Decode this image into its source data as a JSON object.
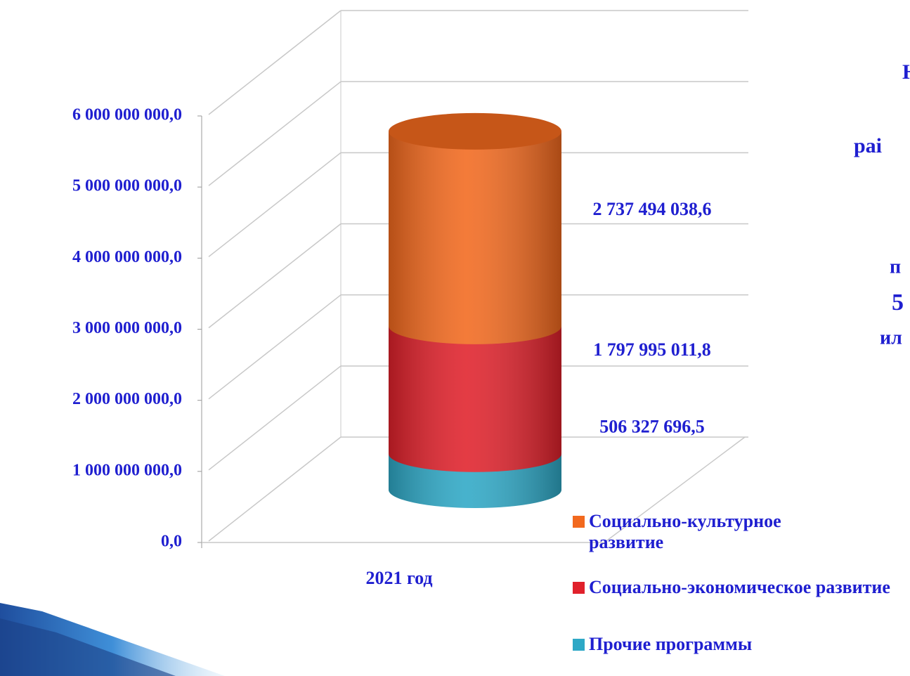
{
  "chart_data": {
    "type": "bar3d-stacked-cylinder",
    "categories": [
      "2021 год"
    ],
    "series": [
      {
        "name": "Прочие программы",
        "color": "#2ea8c6",
        "values": [
          506327696.5
        ],
        "value_labels": [
          "506 327 696,5"
        ]
      },
      {
        "name": "Социально-экономическое развитие",
        "color": "#e0212b",
        "values": [
          1797995011.8
        ],
        "value_labels": [
          "1 797 995 011,8"
        ]
      },
      {
        "name": "Социально-культурное развитие",
        "color": "#f2691e",
        "values": [
          2737494038.6
        ],
        "value_labels": [
          "2 737 494 038,6"
        ]
      }
    ],
    "ylim": [
      0,
      6000000000
    ],
    "yticks": [
      {
        "value": 0,
        "label": "0,0"
      },
      {
        "value": 1000000000,
        "label": "1 000 000 000,0"
      },
      {
        "value": 2000000000,
        "label": "2 000 000 000,0"
      },
      {
        "value": 3000000000,
        "label": "3 000 000 000,0"
      },
      {
        "value": 4000000000,
        "label": "4 000 000 000,0"
      },
      {
        "value": 5000000000,
        "label": "5 000 000 000,0"
      },
      {
        "value": 6000000000,
        "label": "6 000 000 000,0"
      }
    ],
    "grid": true,
    "legend": "bottom-right",
    "annotations": [
      "Н",
      "раі",
      "п",
      "5",
      "ил"
    ]
  }
}
